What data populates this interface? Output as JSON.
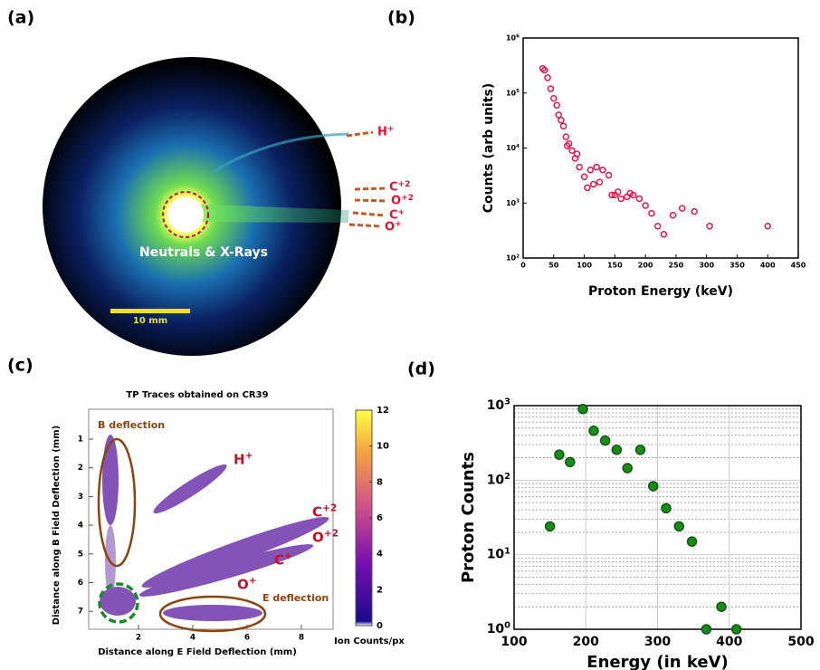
{
  "panels": {
    "a": {
      "label": "(a)",
      "ions": [
        "H^+",
        "C^+2",
        "O^+2",
        "C^+",
        "O^+"
      ],
      "annotation": "Neutrals & X-Rays",
      "scale_bar": "10 mm"
    },
    "c": {
      "label": "(c)",
      "title": "TP Traces obtained on CR39",
      "xlabel": "Distance along E Field Deflection (mm)",
      "ylabel": "Distance along B Field Deflection (mm)",
      "xticks": [
        2,
        4,
        6,
        8
      ],
      "yticks": [
        1,
        2,
        3,
        4,
        5,
        6,
        7
      ],
      "colorbar_label": "Ion Counts/px",
      "colorbar_ticks": [
        0,
        2,
        4,
        6,
        8,
        10,
        12
      ],
      "annotations": [
        "B deflection",
        "E deflection"
      ],
      "ions": [
        "H^+",
        "C^+2",
        "O^+2",
        "C^+",
        "O^+"
      ]
    }
  },
  "chart_data": [
    {
      "type": "scatter",
      "panel_label": "(b)",
      "xlabel": "Proton Energy (keV)",
      "ylabel": "Counts (arb units)",
      "log_y": true,
      "color": "#e8174a",
      "marker": "hollow",
      "x": [
        32,
        35,
        40,
        45,
        50,
        55,
        58,
        62,
        66,
        70,
        72,
        75,
        80,
        85,
        88,
        92,
        100,
        105,
        110,
        115,
        120,
        125,
        130,
        140,
        145,
        150,
        155,
        160,
        170,
        175,
        180,
        190,
        200,
        210,
        220,
        230,
        245,
        260,
        280,
        305,
        400
      ],
      "values": [
        280000,
        260000,
        190000,
        120000,
        80000,
        60000,
        40000,
        32000,
        25000,
        16000,
        11000,
        12000,
        9000,
        6500,
        7800,
        4500,
        3000,
        1900,
        4000,
        2200,
        4500,
        2400,
        4000,
        3200,
        1400,
        1400,
        1600,
        1200,
        1300,
        1500,
        1400,
        1200,
        900,
        650,
        380,
        270,
        600,
        800,
        700,
        380,
        380
      ],
      "xlim": [
        0,
        450
      ],
      "xticks": [
        0,
        50,
        100,
        150,
        200,
        250,
        300,
        350,
        400,
        450
      ],
      "ylim": [
        100,
        1000000
      ],
      "yticks": [
        {
          "value": 100,
          "label": "10^2"
        },
        {
          "value": 1000,
          "label": "10^3"
        },
        {
          "value": 10000,
          "label": "10^4"
        },
        {
          "value": 100000,
          "label": "10^5"
        },
        {
          "value": 1000000,
          "label": "10^6"
        }
      ]
    },
    {
      "type": "scatter",
      "panel_label": "(d)",
      "xlabel": "Energy (in keV)",
      "ylabel": "Proton Counts",
      "log_y": true,
      "grid": true,
      "minor_grid": true,
      "color": "#1a8a1a",
      "marker": "filled",
      "x": [
        150,
        163,
        178,
        196,
        211,
        227,
        243,
        258,
        276,
        294,
        312,
        330,
        348,
        368,
        389,
        410
      ],
      "values": [
        24,
        220,
        175,
        900,
        460,
        340,
        255,
        145,
        255,
        83,
        42,
        24,
        15,
        1,
        2,
        1
      ],
      "xlim": [
        100,
        500
      ],
      "xticks": [
        100,
        200,
        300,
        400,
        500
      ],
      "ylim": [
        1,
        1000
      ],
      "yticks": [
        {
          "value": 1,
          "label": "10^0"
        },
        {
          "value": 10,
          "label": "10^1"
        },
        {
          "value": 100,
          "label": "10^2"
        },
        {
          "value": 1000,
          "label": "10^3"
        }
      ]
    }
  ]
}
